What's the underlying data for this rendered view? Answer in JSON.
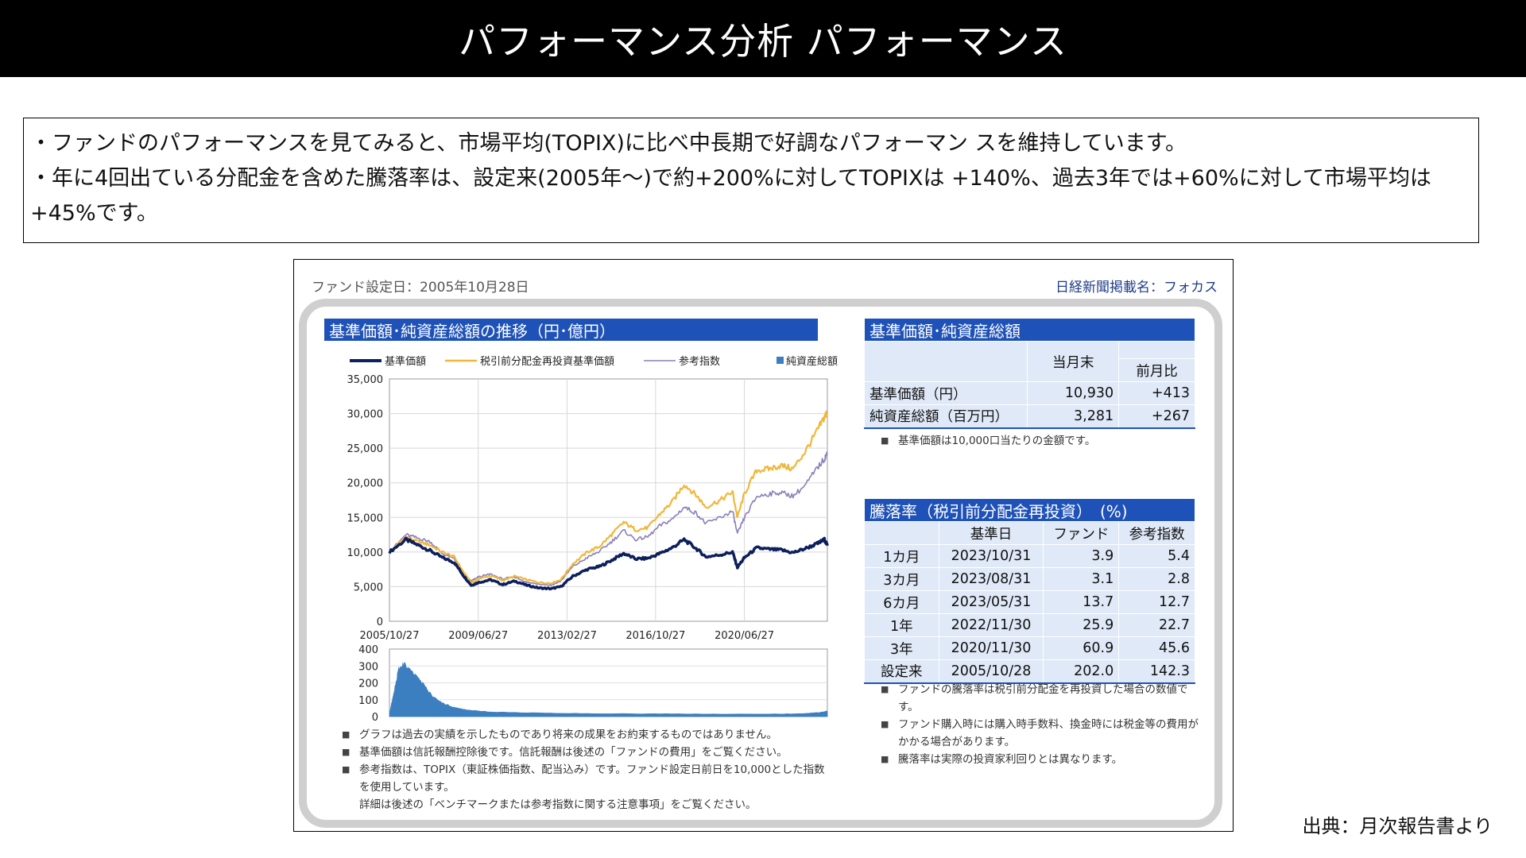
{
  "page_title": "パフォーマンス分析 パフォーマンス",
  "summary": [
    "・ファンドのパフォーマンスを見てみると、市場平均(TOPIX)に比べ中長期で好調なパフォーマン スを維持しています。",
    "・年に4回出ている分配金を含めた騰落率は、設定来(2005年～)で約+200%に対してTOPIXは +140%、過去3年では+60%に対して市場平均は+45%です。"
  ],
  "report": {
    "fund_date": "ファンド設定日：2005年10月28日",
    "fund_name": "日経新聞掲載名：フォカス",
    "chart_header": "基準価額･純資産総額の推移（円･億円）",
    "chart_notes": [
      "グラフは過去の実績を示したものであり将来の成果をお約束するものではありません。",
      "基準価額は信託報酬控除後です。信託報酬は後述の「ファンドの費用」をご覧ください。",
      "参考指数は、TOPIX（東証株価指数、配当込み）です。ファンド設定日前日を10,000とした指数を使用しています。",
      "詳細は後述の「ベンチマークまたは参考指数に関する注意事項」をご覧ください。"
    ],
    "nav_table": {
      "header": "基準価額･純資産総額",
      "col_current": "当月末",
      "col_diff": "前月比",
      "rows": [
        {
          "label": "基準価額（円）",
          "current": "10,930",
          "diff": "+413"
        },
        {
          "label": "純資産総額（百万円）",
          "current": "3,281",
          "diff": "+267"
        }
      ],
      "note": "基準価額は10,000口当たりの金額です。"
    },
    "return_table": {
      "header": "騰落率（税引前分配金再投資）　(%)",
      "cols": [
        "基準日",
        "ファンド",
        "参考指数"
      ],
      "rows": [
        {
          "period": "1カ月",
          "date": "2023/10/31",
          "fund": "3.9",
          "index": "5.4"
        },
        {
          "period": "3カ月",
          "date": "2023/08/31",
          "fund": "3.1",
          "index": "2.8"
        },
        {
          "period": "6カ月",
          "date": "2023/05/31",
          "fund": "13.7",
          "index": "12.7"
        },
        {
          "period": "1年",
          "date": "2022/11/30",
          "fund": "25.9",
          "index": "22.7"
        },
        {
          "period": "3年",
          "date": "2020/11/30",
          "fund": "60.9",
          "index": "45.6"
        },
        {
          "period": "設定来",
          "date": "2005/10/28",
          "fund": "202.0",
          "index": "142.3"
        }
      ],
      "notes": [
        "ファンドの騰落率は税引前分配金を再投資した場合の数値です。",
        "ファンド購入時には購入時手数料、換金時には税金等の費用がかかる場合があります。",
        "騰落率は実際の投資家利回りとは異なります。"
      ]
    }
  },
  "source": "出典：月次報告書より",
  "chart_data": {
    "type": "line",
    "legend_placement": "top",
    "x_tick_labels": [
      "2005/10/27",
      "2009/06/27",
      "2013/02/27",
      "2016/10/27",
      "2020/06/27"
    ],
    "x_range": [
      "2005/10/27",
      "2023/11/30"
    ],
    "ylim": [
      0,
      35000
    ],
    "y_ticks": [
      "35,000",
      "30,000",
      "25,000",
      "20,000",
      "15,000",
      "10,000",
      "5,000",
      "0"
    ],
    "grid": true,
    "x": [
      2005.82,
      2006.5,
      2007.0,
      2007.5,
      2008.0,
      2008.5,
      2008.9,
      2009.2,
      2009.5,
      2010.0,
      2010.5,
      2011.0,
      2011.5,
      2012.0,
      2012.5,
      2012.9,
      2013.4,
      2014.0,
      2014.5,
      2015.0,
      2015.5,
      2016.0,
      2016.5,
      2017.0,
      2017.5,
      2018.0,
      2018.5,
      2018.9,
      2019.5,
      2020.0,
      2020.2,
      2020.5,
      2021.0,
      2021.5,
      2022.0,
      2022.5,
      2023.0,
      2023.5,
      2023.8,
      2023.92
    ],
    "series": [
      {
        "name": "基準価額",
        "color": "#0d1f5c",
        "values": [
          10000,
          11800,
          11000,
          10200,
          9200,
          8500,
          6500,
          5200,
          5600,
          6000,
          5300,
          5800,
          5200,
          4800,
          4700,
          5000,
          6500,
          7500,
          7900,
          8800,
          9800,
          9000,
          9100,
          9800,
          10600,
          11800,
          10500,
          9300,
          9600,
          10000,
          7800,
          9200,
          10600,
          10400,
          10300,
          9900,
          10500,
          11200,
          11800,
          10930
        ]
      },
      {
        "name": "税引前分配金再投資基準価額",
        "color": "#f0b73a",
        "values": [
          10000,
          12200,
          11500,
          11000,
          10000,
          9300,
          7000,
          5600,
          6100,
          6600,
          5900,
          6500,
          6000,
          5600,
          5500,
          6000,
          8300,
          10000,
          10800,
          12500,
          14300,
          13200,
          13500,
          15500,
          17200,
          19800,
          18200,
          16500,
          17500,
          18700,
          15000,
          18500,
          21800,
          22000,
          22500,
          22000,
          24500,
          27500,
          29500,
          30200
        ]
      },
      {
        "name": "参考指数",
        "color": "#8a7fb8",
        "values": [
          10000,
          12500,
          12000,
          11500,
          9800,
          9000,
          6800,
          5800,
          6400,
          6800,
          6100,
          6400,
          5600,
          5400,
          5200,
          5800,
          7900,
          9200,
          10100,
          11500,
          13100,
          11800,
          12200,
          13800,
          14700,
          16500,
          15600,
          14100,
          15000,
          15900,
          12600,
          15000,
          18000,
          18400,
          18600,
          18100,
          19600,
          22100,
          23500,
          24300
        ]
      }
    ],
    "net_assets": {
      "name": "純資産総額",
      "color": "#3b7fc0",
      "ylim": [
        0,
        400
      ],
      "y_ticks": [
        "400",
        "300",
        "200",
        "100",
        "0"
      ],
      "x": [
        2005.82,
        2006.0,
        2006.2,
        2006.4,
        2006.7,
        2007.0,
        2007.3,
        2007.6,
        2008.0,
        2008.5,
        2009.0,
        2010.0,
        2012.0,
        2014.0,
        2016.0,
        2018.0,
        2020.0,
        2022.0,
        2023.0,
        2023.6,
        2023.92
      ],
      "values": [
        20,
        140,
        280,
        310,
        285,
        230,
        175,
        120,
        80,
        55,
        40,
        28,
        22,
        18,
        17,
        16,
        15,
        16,
        18,
        25,
        33
      ]
    }
  }
}
